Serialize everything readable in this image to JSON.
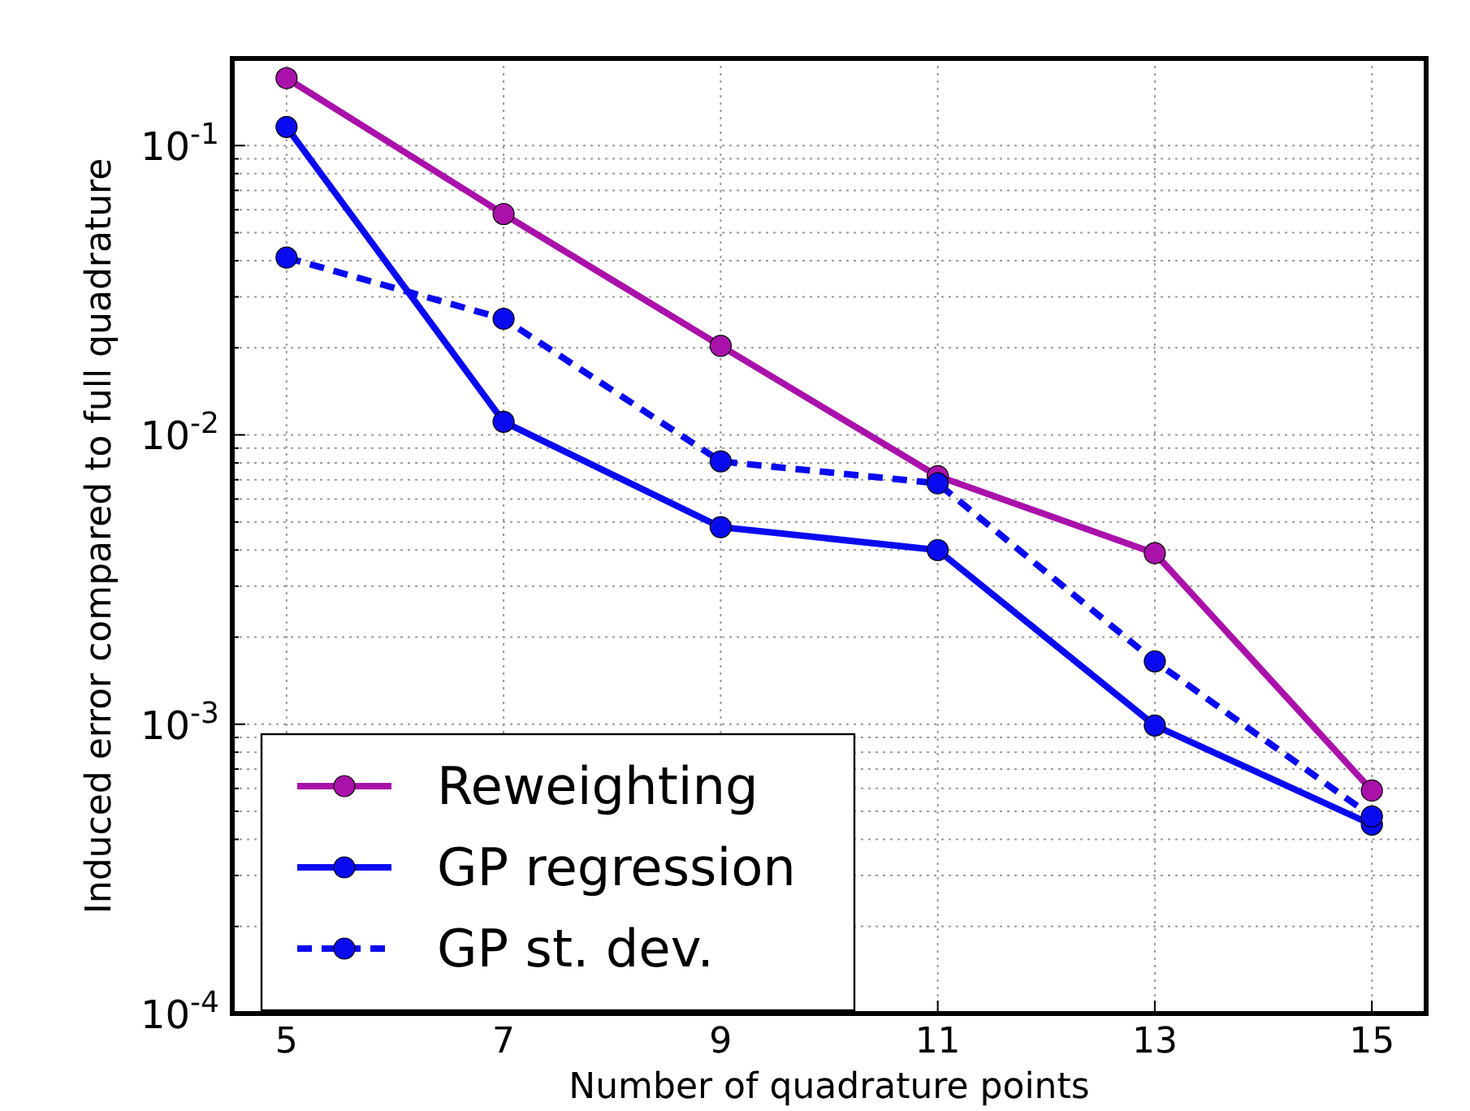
{
  "chart_data": {
    "type": "line",
    "xlabel": "Number of quadrature points",
    "ylabel": "Induced error compared to full quadrature",
    "x": [
      5,
      7,
      9,
      11,
      13,
      15
    ],
    "series": [
      {
        "name": "Reweighting",
        "color": "#aa11aa",
        "values": [
          0.171,
          0.058,
          0.0203,
          0.0072,
          0.0039,
          0.00059
        ]
      },
      {
        "name": "GP regression",
        "color": "#0a0af0",
        "values": [
          0.116,
          0.0111,
          0.0048,
          0.004,
          0.00099,
          0.00045
        ]
      },
      {
        "name": "GP st. dev.",
        "color": "#0a0af0",
        "line_style": "dashed",
        "values": [
          0.041,
          0.0252,
          0.0081,
          0.0068,
          0.00165,
          0.00048
        ]
      }
    ],
    "xlim": [
      4.5,
      15.5
    ],
    "xticks": [
      5,
      7,
      9,
      11,
      13,
      15
    ],
    "ylim": [
      0.0001,
      0.2
    ],
    "log": "y",
    "yticks": [
      {
        "value": 0.0001,
        "label": "10$^{-4}$"
      },
      {
        "value": 0.0002,
        "label": null
      },
      {
        "value": 0.0003,
        "label": null
      },
      {
        "value": 0.0004,
        "label": null
      },
      {
        "value": 0.0005,
        "label": null
      },
      {
        "value": 0.0006,
        "label": null
      },
      {
        "value": 0.0007,
        "label": null
      },
      {
        "value": 0.0008,
        "label": null
      },
      {
        "value": 0.0009,
        "label": null
      },
      {
        "value": 0.001,
        "label": "10$^{-3}$"
      },
      {
        "value": 0.002,
        "label": null
      },
      {
        "value": 0.003,
        "label": null
      },
      {
        "value": 0.004,
        "label": null
      },
      {
        "value": 0.005,
        "label": null
      },
      {
        "value": 0.006,
        "label": null
      },
      {
        "value": 0.007,
        "label": null
      },
      {
        "value": 0.008,
        "label": null
      },
      {
        "value": 0.009,
        "label": null
      },
      {
        "value": 0.01,
        "label": "10$^{-2}$"
      },
      {
        "value": 0.02,
        "label": null
      },
      {
        "value": 0.03,
        "label": null
      },
      {
        "value": 0.04,
        "label": null
      },
      {
        "value": 0.05,
        "label": null
      },
      {
        "value": 0.06,
        "label": null
      },
      {
        "value": 0.07,
        "label": null
      },
      {
        "value": 0.08,
        "label": null
      },
      {
        "value": 0.09,
        "label": null
      },
      {
        "value": 0.1,
        "label": "10$^{-1}$"
      },
      {
        "value": 0.2,
        "label": null
      }
    ],
    "grid": true,
    "legend": "bottom left",
    "marker": "circle",
    "line_style": "solid"
  }
}
